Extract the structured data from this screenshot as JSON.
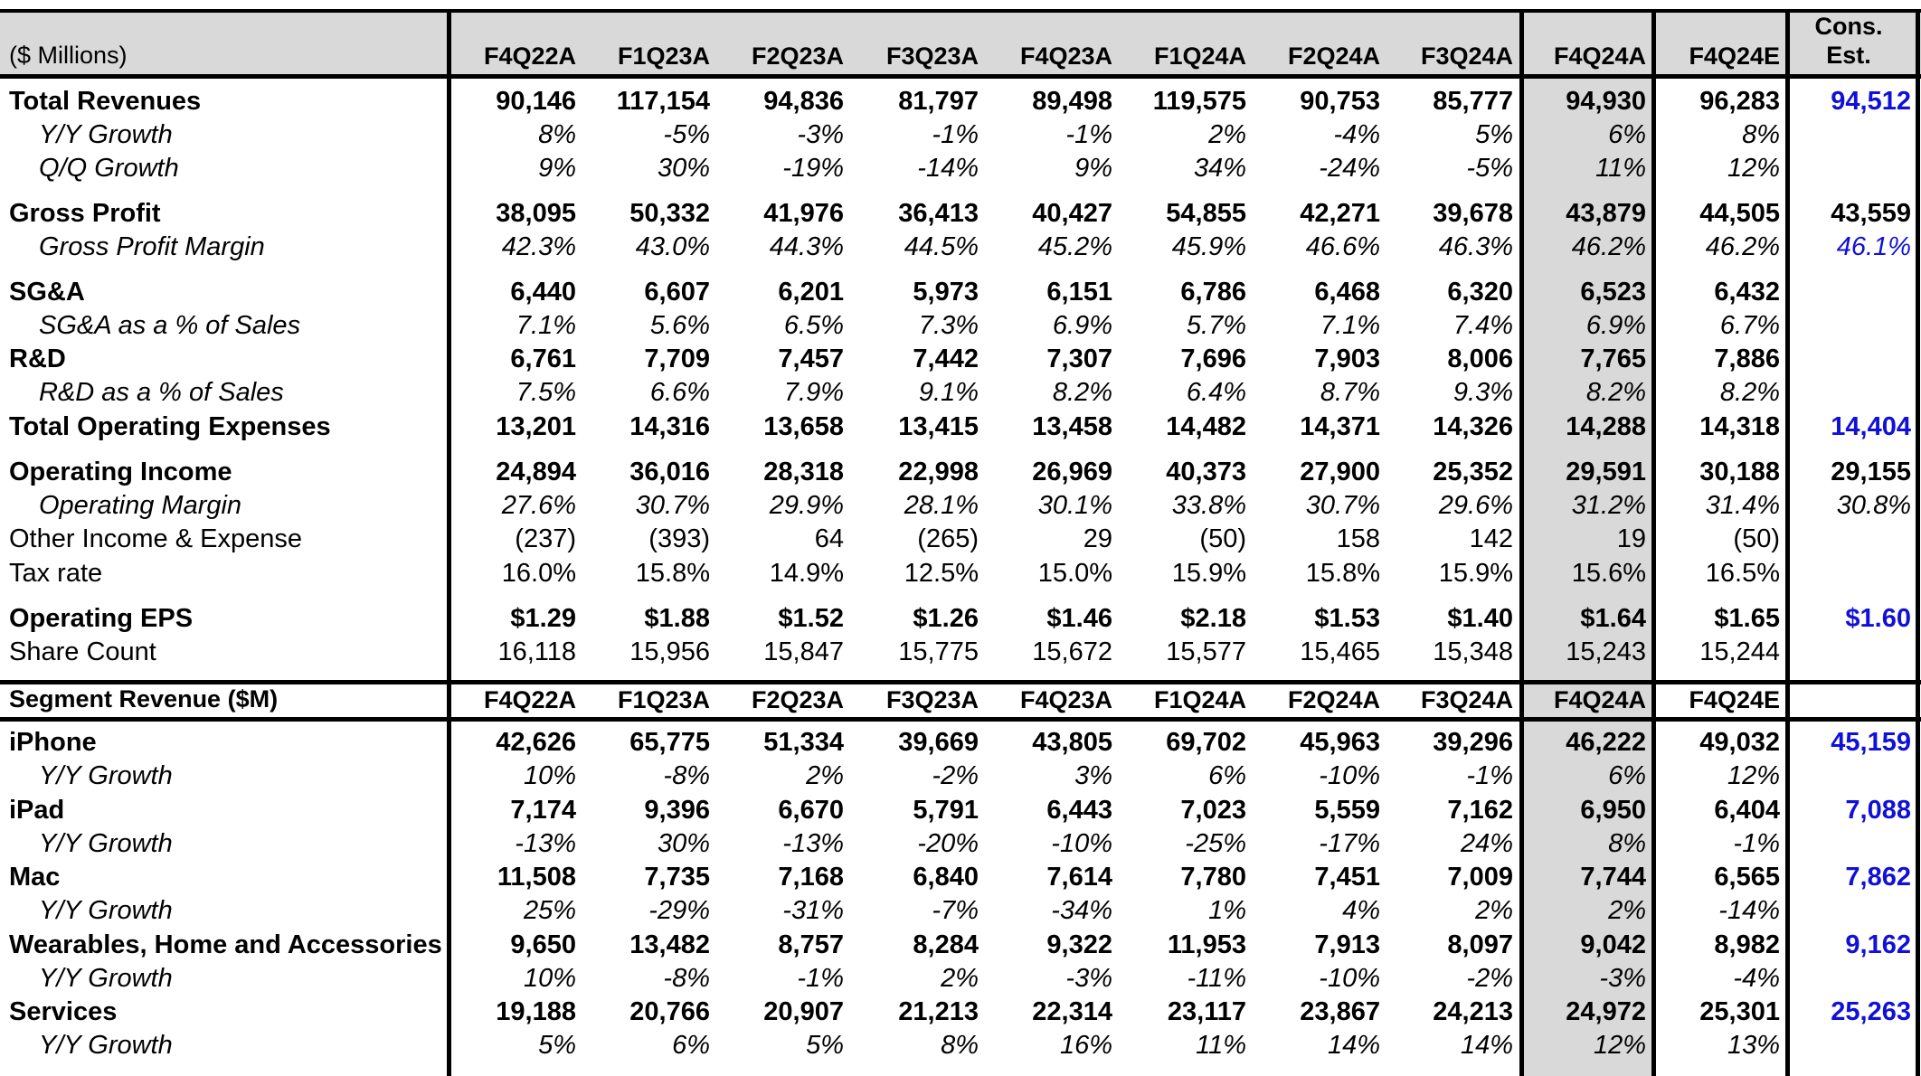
{
  "header": {
    "units_label": "($ Millions)",
    "periods": [
      "F4Q22A",
      "F1Q23A",
      "F2Q23A",
      "F3Q23A",
      "F4Q23A",
      "F1Q24A",
      "F2Q24A",
      "F3Q24A",
      "F4Q24A",
      "F4Q24E"
    ],
    "cons_line1": "Cons.",
    "cons_line2": "Est."
  },
  "income_rows": [
    {
      "label": "Total Revenues",
      "style": "b",
      "indent": false,
      "values": [
        "90,146",
        "117,154",
        "94,836",
        "81,797",
        "89,498",
        "119,575",
        "90,753",
        "85,777",
        "94,930",
        "96,283"
      ],
      "cons": "94,512",
      "cons_blue": true
    },
    {
      "label": "Y/Y Growth",
      "style": "i",
      "indent": true,
      "values": [
        "8%",
        "-5%",
        "-3%",
        "-1%",
        "-1%",
        "2%",
        "-4%",
        "5%",
        "6%",
        "8%"
      ],
      "cons": "",
      "cons_blue": false
    },
    {
      "label": "Q/Q Growth",
      "style": "i",
      "indent": true,
      "values": [
        "9%",
        "30%",
        "-19%",
        "-14%",
        "9%",
        "34%",
        "-24%",
        "-5%",
        "11%",
        "12%"
      ],
      "cons": "",
      "cons_blue": false
    },
    {
      "label": "Gross Profit",
      "style": "b",
      "indent": false,
      "values": [
        "38,095",
        "50,332",
        "41,976",
        "36,413",
        "40,427",
        "54,855",
        "42,271",
        "39,678",
        "43,879",
        "44,505"
      ],
      "cons": "43,559",
      "cons_blue": false
    },
    {
      "label": "Gross Profit Margin",
      "style": "i",
      "indent": true,
      "values": [
        "42.3%",
        "43.0%",
        "44.3%",
        "44.5%",
        "45.2%",
        "45.9%",
        "46.6%",
        "46.3%",
        "46.2%",
        "46.2%"
      ],
      "cons": "46.1%",
      "cons_blue": true
    },
    {
      "label": "SG&A",
      "style": "b",
      "indent": false,
      "values": [
        "6,440",
        "6,607",
        "6,201",
        "5,973",
        "6,151",
        "6,786",
        "6,468",
        "6,320",
        "6,523",
        "6,432"
      ],
      "cons": "",
      "cons_blue": false
    },
    {
      "label": "SG&A as a % of Sales",
      "style": "i",
      "indent": true,
      "values": [
        "7.1%",
        "5.6%",
        "6.5%",
        "7.3%",
        "6.9%",
        "5.7%",
        "7.1%",
        "7.4%",
        "6.9%",
        "6.7%"
      ],
      "cons": "",
      "cons_blue": false
    },
    {
      "label": "R&D",
      "style": "b",
      "indent": false,
      "values": [
        "6,761",
        "7,709",
        "7,457",
        "7,442",
        "7,307",
        "7,696",
        "7,903",
        "8,006",
        "7,765",
        "7,886"
      ],
      "cons": "",
      "cons_blue": false
    },
    {
      "label": "R&D as a % of Sales",
      "style": "i",
      "indent": true,
      "values": [
        "7.5%",
        "6.6%",
        "7.9%",
        "9.1%",
        "8.2%",
        "6.4%",
        "8.7%",
        "9.3%",
        "8.2%",
        "8.2%"
      ],
      "cons": "",
      "cons_blue": false
    },
    {
      "label": "Total Operating Expenses",
      "style": "b",
      "indent": false,
      "values": [
        "13,201",
        "14,316",
        "13,658",
        "13,415",
        "13,458",
        "14,482",
        "14,371",
        "14,326",
        "14,288",
        "14,318"
      ],
      "cons": "14,404",
      "cons_blue": true
    },
    {
      "label": "Operating Income",
      "style": "b",
      "indent": false,
      "values": [
        "24,894",
        "36,016",
        "28,318",
        "22,998",
        "26,969",
        "40,373",
        "27,900",
        "25,352",
        "29,591",
        "30,188"
      ],
      "cons": "29,155",
      "cons_blue": false
    },
    {
      "label": "Operating Margin",
      "style": "i",
      "indent": true,
      "values": [
        "27.6%",
        "30.7%",
        "29.9%",
        "28.1%",
        "30.1%",
        "33.8%",
        "30.7%",
        "29.6%",
        "31.2%",
        "31.4%"
      ],
      "cons": "30.8%",
      "cons_blue": false
    },
    {
      "label": "Other Income & Expense",
      "style": "",
      "indent": false,
      "values": [
        "(237)",
        "(393)",
        "64",
        "(265)",
        "29",
        "(50)",
        "158",
        "142",
        "19",
        "(50)"
      ],
      "cons": "",
      "cons_blue": false
    },
    {
      "label": "Tax rate",
      "style": "",
      "indent": false,
      "values": [
        "16.0%",
        "15.8%",
        "14.9%",
        "12.5%",
        "15.0%",
        "15.9%",
        "15.8%",
        "15.9%",
        "15.6%",
        "16.5%"
      ],
      "cons": "",
      "cons_blue": false
    },
    {
      "label": "Operating EPS",
      "style": "b",
      "indent": false,
      "values": [
        "$1.29",
        "$1.88",
        "$1.52",
        "$1.26",
        "$1.46",
        "$2.18",
        "$1.53",
        "$1.40",
        "$1.64",
        "$1.65"
      ],
      "cons": "$1.60",
      "cons_blue": true
    },
    {
      "label": "Share Count",
      "style": "",
      "indent": false,
      "values": [
        "16,118",
        "15,956",
        "15,847",
        "15,775",
        "15,672",
        "15,577",
        "15,465",
        "15,348",
        "15,243",
        "15,244"
      ],
      "cons": "",
      "cons_blue": false
    }
  ],
  "segment_header": {
    "label": "Segment Revenue ($M)",
    "periods": [
      "F4Q22A",
      "F1Q23A",
      "F2Q23A",
      "F3Q23A",
      "F4Q23A",
      "F1Q24A",
      "F2Q24A",
      "F3Q24A",
      "F4Q24A",
      "F4Q24E"
    ]
  },
  "segment_rows": [
    {
      "label": "iPhone",
      "style": "b",
      "indent": false,
      "values": [
        "42,626",
        "65,775",
        "51,334",
        "39,669",
        "43,805",
        "69,702",
        "45,963",
        "39,296",
        "46,222",
        "49,032"
      ],
      "cons": "45,159",
      "cons_blue": true
    },
    {
      "label": "Y/Y Growth",
      "style": "i",
      "indent": true,
      "values": [
        "10%",
        "-8%",
        "2%",
        "-2%",
        "3%",
        "6%",
        "-10%",
        "-1%",
        "6%",
        "12%"
      ],
      "cons": "",
      "cons_blue": false
    },
    {
      "label": "iPad",
      "style": "b",
      "indent": false,
      "values": [
        "7,174",
        "9,396",
        "6,670",
        "5,791",
        "6,443",
        "7,023",
        "5,559",
        "7,162",
        "6,950",
        "6,404"
      ],
      "cons": "7,088",
      "cons_blue": true
    },
    {
      "label": "Y/Y Growth",
      "style": "i",
      "indent": true,
      "values": [
        "-13%",
        "30%",
        "-13%",
        "-20%",
        "-10%",
        "-25%",
        "-17%",
        "24%",
        "8%",
        "-1%"
      ],
      "cons": "",
      "cons_blue": false
    },
    {
      "label": "Mac",
      "style": "b",
      "indent": false,
      "values": [
        "11,508",
        "7,735",
        "7,168",
        "6,840",
        "7,614",
        "7,780",
        "7,451",
        "7,009",
        "7,744",
        "6,565"
      ],
      "cons": "7,862",
      "cons_blue": true
    },
    {
      "label": "Y/Y Growth",
      "style": "i",
      "indent": true,
      "values": [
        "25%",
        "-29%",
        "-31%",
        "-7%",
        "-34%",
        "1%",
        "4%",
        "2%",
        "2%",
        "-14%"
      ],
      "cons": "",
      "cons_blue": false
    },
    {
      "label": "Wearables, Home and Accessories",
      "style": "b",
      "indent": false,
      "values": [
        "9,650",
        "13,482",
        "8,757",
        "8,284",
        "9,322",
        "11,953",
        "7,913",
        "8,097",
        "9,042",
        "8,982"
      ],
      "cons": "9,162",
      "cons_blue": true
    },
    {
      "label": "Y/Y Growth",
      "style": "i",
      "indent": true,
      "values": [
        "10%",
        "-8%",
        "-1%",
        "2%",
        "-3%",
        "-11%",
        "-10%",
        "-2%",
        "-3%",
        "-4%"
      ],
      "cons": "",
      "cons_blue": false
    },
    {
      "label": "Services",
      "style": "b",
      "indent": false,
      "values": [
        "19,188",
        "20,766",
        "20,907",
        "21,213",
        "22,314",
        "23,117",
        "23,867",
        "24,213",
        "24,972",
        "25,301"
      ],
      "cons": "25,263",
      "cons_blue": true
    },
    {
      "label": "Y/Y Growth",
      "style": "i",
      "indent": true,
      "values": [
        "5%",
        "6%",
        "5%",
        "8%",
        "16%",
        "11%",
        "14%",
        "14%",
        "12%",
        "13%"
      ],
      "cons": "",
      "cons_blue": false
    }
  ]
}
